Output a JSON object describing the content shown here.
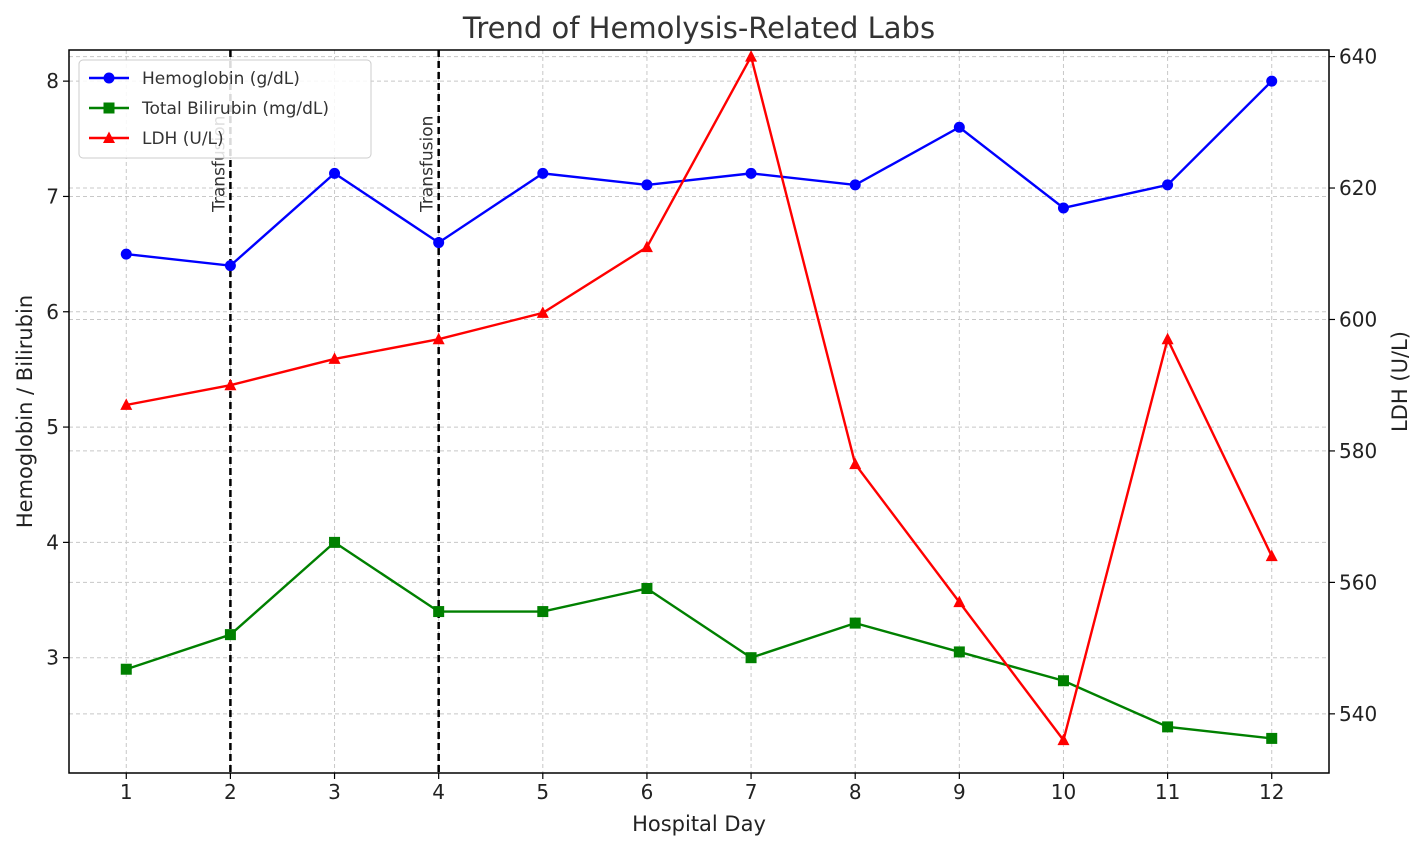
{
  "chart_data": {
    "type": "line",
    "title": "Trend of Hemolysis-Related Labs",
    "xlabel": "Hospital Day",
    "ylabel_left": "Hemoglobin / Bilirubin",
    "ylabel_right": "LDH (U/L)",
    "x": [
      1,
      2,
      3,
      4,
      5,
      6,
      7,
      8,
      9,
      10,
      11,
      12
    ],
    "xlim": [
      0.45,
      12.55
    ],
    "ylim_left": [
      2.0,
      8.27
    ],
    "ylim_right": [
      531,
      641
    ],
    "yticks_left": [
      3,
      4,
      5,
      6,
      7,
      8
    ],
    "yticks_right": [
      540,
      560,
      580,
      600,
      620,
      640
    ],
    "grid": true,
    "legend_position": "top-left",
    "series": [
      {
        "name": "Hemoglobin (g/dL)",
        "axis": "left",
        "color": "#0000ff",
        "marker": "circle",
        "values": [
          6.5,
          6.4,
          7.2,
          6.6,
          7.2,
          7.1,
          7.2,
          7.1,
          7.6,
          6.9,
          7.1,
          8.0
        ]
      },
      {
        "name": "Total Bilirubin (mg/dL)",
        "axis": "left",
        "color": "#008000",
        "marker": "square",
        "values": [
          2.9,
          3.2,
          4.0,
          3.4,
          3.4,
          3.6,
          3.0,
          3.3,
          3.05,
          2.8,
          2.4,
          2.3
        ]
      },
      {
        "name": "LDH (U/L)",
        "axis": "right",
        "color": "#ff0000",
        "marker": "triangle",
        "values": [
          587,
          590,
          594,
          597,
          601,
          611,
          640,
          578,
          557,
          536,
          597,
          564
        ]
      }
    ],
    "annotations": [
      {
        "x": 2,
        "label": "Transfusion"
      },
      {
        "x": 4,
        "label": "Transfusion"
      }
    ]
  }
}
